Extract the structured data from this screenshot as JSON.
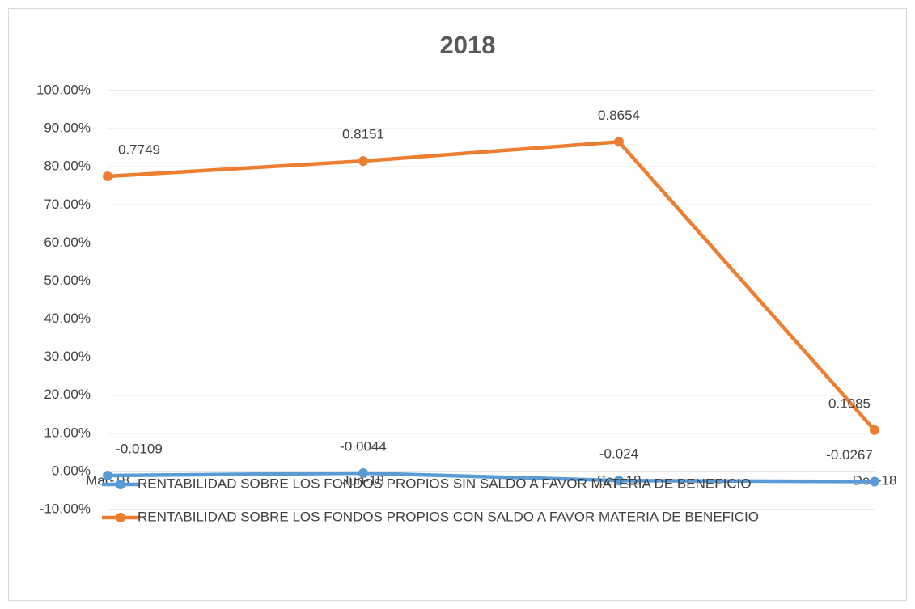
{
  "chart_data": {
    "type": "line",
    "title": "2018",
    "categories": [
      "Mar-18",
      "Jun-18",
      "Sep-18",
      "Dec-18"
    ],
    "series": [
      {
        "name": "RENTABILIDAD SOBRE LOS FONDOS PROPIOS SIN SALDO A FAVOR MATERIA DE BENEFICIO",
        "color": "#5b9bd5",
        "values": [
          -1.09,
          -0.44,
          -2.4,
          -2.67
        ],
        "value_labels": [
          "-0.0109",
          "-0.0044",
          "-0.024",
          "-0.0267"
        ]
      },
      {
        "name": "RENTABILIDAD SOBRE LOS FONDOS PROPIOS CON SALDO A FAVOR MATERIA DE BENEFICIO",
        "color": "#ed7d31",
        "values": [
          77.49,
          81.51,
          86.54,
          10.85
        ],
        "value_labels": [
          "0.7749",
          "0.8151",
          "0.8654",
          "0.1085"
        ]
      }
    ],
    "ylim": [
      -10,
      100
    ],
    "yticks": [
      {
        "value": -10,
        "label": "-10.00%"
      },
      {
        "value": 0,
        "label": "0.00%"
      },
      {
        "value": 10,
        "label": "10.00%"
      },
      {
        "value": 20,
        "label": "20.00%"
      },
      {
        "value": 30,
        "label": "30.00%"
      },
      {
        "value": 40,
        "label": "40.00%"
      },
      {
        "value": 50,
        "label": "50.00%"
      },
      {
        "value": 60,
        "label": "60.00%"
      },
      {
        "value": 70,
        "label": "70.00%"
      },
      {
        "value": 80,
        "label": "80.00%"
      },
      {
        "value": 90,
        "label": "90.00%"
      },
      {
        "value": 100,
        "label": "100.00%"
      }
    ],
    "grid": true
  }
}
